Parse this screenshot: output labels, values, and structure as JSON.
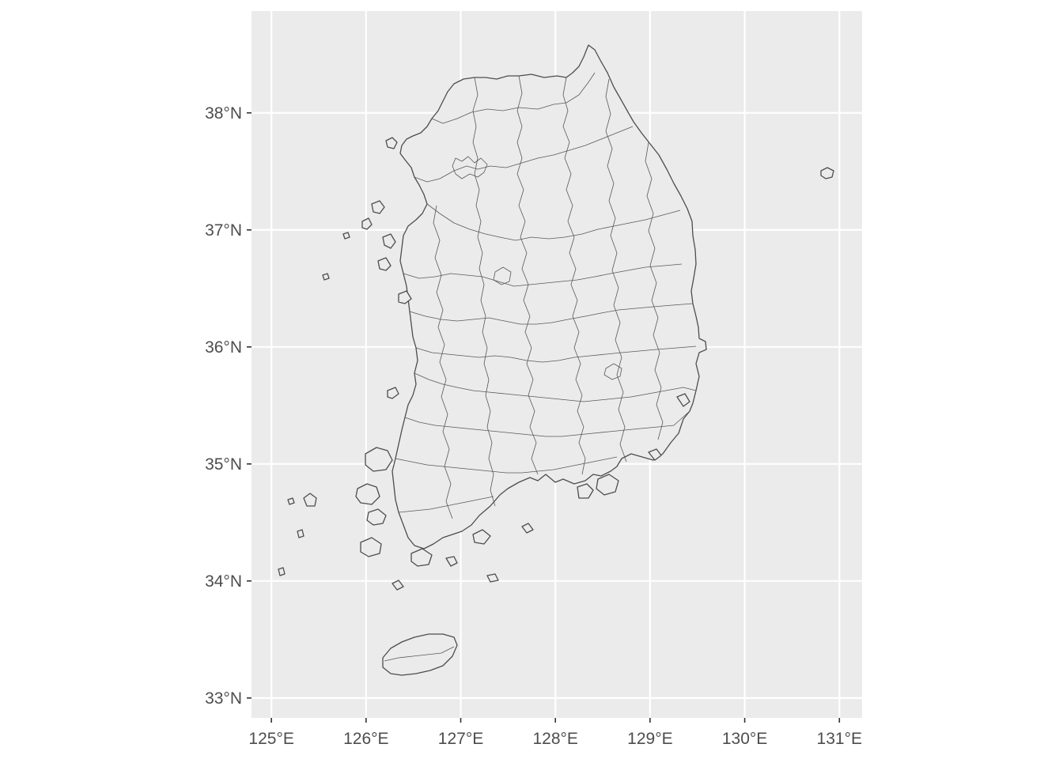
{
  "map": {
    "region": "South Korea",
    "x_axis": {
      "ticks": [
        {
          "value": 125,
          "label": "125°E"
        },
        {
          "value": 126,
          "label": "126°E"
        },
        {
          "value": 127,
          "label": "127°E"
        },
        {
          "value": 128,
          "label": "128°E"
        },
        {
          "value": 129,
          "label": "129°E"
        },
        {
          "value": 130,
          "label": "130°E"
        },
        {
          "value": 131,
          "label": "131°E"
        }
      ]
    },
    "y_axis": {
      "ticks": [
        {
          "value": 33,
          "label": "33°N"
        },
        {
          "value": 34,
          "label": "34°N"
        },
        {
          "value": 35,
          "label": "35°N"
        },
        {
          "value": 36,
          "label": "36°N"
        },
        {
          "value": 37,
          "label": "37°N"
        },
        {
          "value": 38,
          "label": "38°N"
        }
      ]
    },
    "extent": {
      "lon": [
        124.79,
        131.24
      ],
      "lat": [
        32.83,
        38.87
      ]
    },
    "grid": true,
    "colors": {
      "panel": "#ebebeb",
      "grid": "#ffffff",
      "outline": "#4d4d4d",
      "text": "#4d4d4d"
    }
  }
}
